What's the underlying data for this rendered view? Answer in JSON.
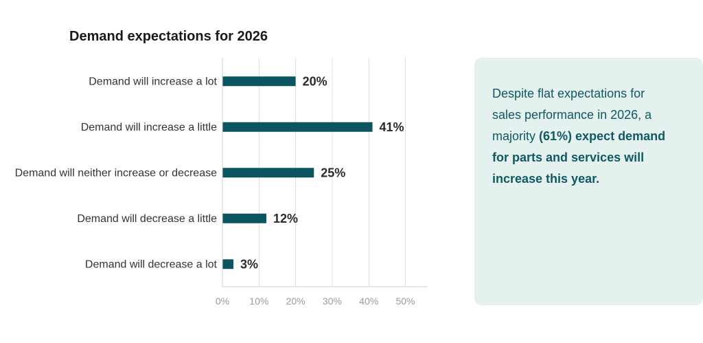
{
  "chart_data": {
    "type": "bar",
    "orientation": "horizontal",
    "title": "Demand expectations for 2026",
    "categories": [
      "Demand will increase a lot",
      "Demand will increase a little",
      "Demand will neither increase or decrease",
      "Demand will decrease a little",
      "Demand will decrease a lot"
    ],
    "values": [
      20,
      41,
      25,
      12,
      3
    ],
    "value_labels": [
      "20%",
      "41%",
      "25%",
      "12%",
      "3%"
    ],
    "xlim": [
      0,
      56
    ],
    "x_ticks": [
      0,
      10,
      20,
      30,
      40,
      50
    ],
    "x_tick_labels": [
      "0%",
      "10%",
      "20%",
      "30%",
      "40%",
      "50%"
    ],
    "xlabel": "",
    "ylabel": "",
    "grid": true,
    "legend": "none",
    "bar_color": "#0b5560"
  },
  "callout": {
    "text_before": "Despite flat expectations for sales performance in 2026, a majority ",
    "text_bold": "(61%) expect demand for parts and services will increase this year.",
    "background_color": "#e4f1ef",
    "text_color": "#0e5a61"
  }
}
